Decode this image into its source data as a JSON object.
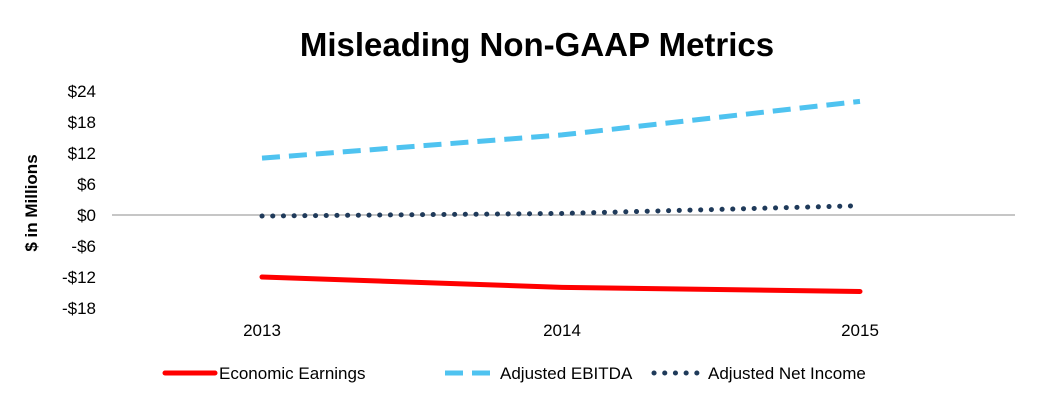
{
  "chart_data": {
    "type": "line",
    "title": "Misleading Non-GAAP Metrics",
    "ylabel": "$ in Millions",
    "xlabel": "",
    "x": [
      "2013",
      "2014",
      "2015"
    ],
    "ylim": [
      -18,
      24
    ],
    "yticks": [
      24,
      18,
      12,
      6,
      0,
      -6,
      -12,
      -18
    ],
    "ytick_labels": [
      "$24",
      "$18",
      "$12",
      "$6",
      "$0",
      "-$6",
      "-$12",
      "-$18"
    ],
    "grid": false,
    "legend_position": "bottom",
    "series": [
      {
        "name": "Economic Earnings",
        "values": [
          -12.0,
          -14.0,
          -14.8
        ],
        "color": "#ff0000",
        "style": "solid"
      },
      {
        "name": "Adjusted EBITDA",
        "values": [
          11.0,
          15.5,
          22.0
        ],
        "color": "#4fc3f0",
        "style": "dashed"
      },
      {
        "name": "Adjusted Net Income",
        "values": [
          -0.2,
          0.3,
          1.8
        ],
        "color": "#1f3a5a",
        "style": "dotted"
      }
    ]
  }
}
